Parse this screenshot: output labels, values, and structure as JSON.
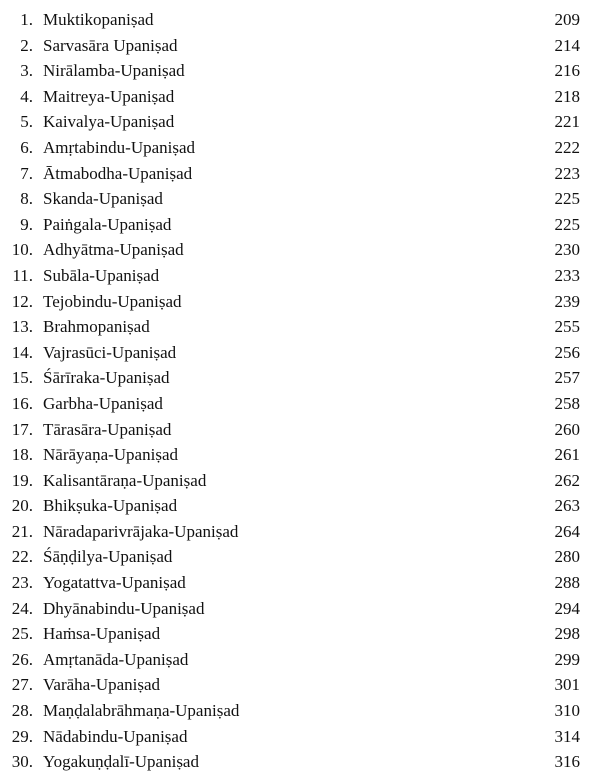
{
  "entries": [
    {
      "num": "1.",
      "title": "Muktikopaniṣad",
      "page": "209"
    },
    {
      "num": "2.",
      "title": "Sarvasāra Upaniṣad",
      "page": "214"
    },
    {
      "num": "3.",
      "title": "Nirālamba-Upaniṣad",
      "page": "216"
    },
    {
      "num": "4.",
      "title": "Maitreya-Upaniṣad",
      "page": "218"
    },
    {
      "num": "5.",
      "title": "Kaivalya-Upaniṣad",
      "page": "221"
    },
    {
      "num": "6.",
      "title": "Amṛtabindu-Upaniṣad",
      "page": "222"
    },
    {
      "num": "7.",
      "title": "Ātmabodha-Upaniṣad",
      "page": "223"
    },
    {
      "num": "8.",
      "title": "Skanda-Upaniṣad",
      "page": "225"
    },
    {
      "num": "9.",
      "title": "Paiṅgala-Upaniṣad",
      "page": "225"
    },
    {
      "num": "10.",
      "title": "Adhyātma-Upaniṣad",
      "page": "230"
    },
    {
      "num": "11.",
      "title": "Subāla-Upaniṣad",
      "page": "233"
    },
    {
      "num": "12.",
      "title": "Tejobindu-Upaniṣad",
      "page": "239"
    },
    {
      "num": "13.",
      "title": "Brahmopaniṣad",
      "page": "255"
    },
    {
      "num": "14.",
      "title": "Vajrasūci-Upaniṣad",
      "page": "256"
    },
    {
      "num": "15.",
      "title": "Śārīraka-Upaniṣad",
      "page": "257"
    },
    {
      "num": "16.",
      "title": "Garbha-Upaniṣad",
      "page": "258"
    },
    {
      "num": "17.",
      "title": "Tārasāra-Upaniṣad",
      "page": "260"
    },
    {
      "num": "18.",
      "title": "Nārāyaṇa-Upaniṣad",
      "page": "261"
    },
    {
      "num": "19.",
      "title": "Kalisantāraṇa-Upaniṣad",
      "page": "262"
    },
    {
      "num": "20.",
      "title": "Bhikṣuka-Upaniṣad",
      "page": "263"
    },
    {
      "num": "21.",
      "title": "Nāradaparivrājaka-Upaniṣad",
      "page": "264"
    },
    {
      "num": "22.",
      "title": "Śāṇḍilya-Upaniṣad",
      "page": "280"
    },
    {
      "num": "23.",
      "title": "Yogatattva-Upaniṣad",
      "page": "288"
    },
    {
      "num": "24.",
      "title": "Dhyānabindu-Upaniṣad",
      "page": "294"
    },
    {
      "num": "25.",
      "title": "Haṁsa-Upaniṣad",
      "page": "298"
    },
    {
      "num": "26.",
      "title": "Amṛtanāda-Upaniṣad",
      "page": "299"
    },
    {
      "num": "27.",
      "title": "Varāha-Upaniṣad",
      "page": "301"
    },
    {
      "num": "28.",
      "title": "Maṇḍalabrāhmaṇa-Upaniṣad",
      "page": "310"
    },
    {
      "num": "29.",
      "title": "Nādabindu-Upaniṣad",
      "page": "314"
    },
    {
      "num": "30.",
      "title": "Yogakuṇḍalī-Upaniṣad",
      "page": "316"
    }
  ]
}
